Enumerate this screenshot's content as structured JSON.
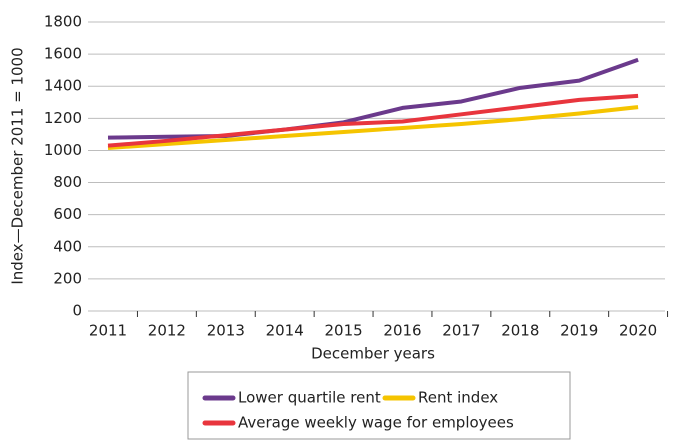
{
  "chart_data": {
    "type": "line",
    "x_label": "December years",
    "y_label": "Index—December 2011 = 1000",
    "categories": [
      "2011",
      "2012",
      "2013",
      "2014",
      "2015",
      "2016",
      "2017",
      "2018",
      "2019",
      "2020"
    ],
    "series": [
      {
        "name": "Lower quartile rent",
        "color": "#6b3a8c",
        "values": [
          1080,
          1085,
          1090,
          1130,
          1175,
          1265,
          1305,
          1390,
          1435,
          1565
        ]
      },
      {
        "name": "Rent index",
        "color": "#f5c400",
        "values": [
          1015,
          1040,
          1065,
          1090,
          1115,
          1140,
          1165,
          1195,
          1230,
          1270
        ]
      },
      {
        "name": "Average weekly wage for employees",
        "color": "#e8353d",
        "values": [
          1030,
          1060,
          1095,
          1130,
          1165,
          1180,
          1225,
          1270,
          1315,
          1340
        ]
      }
    ],
    "ylim": [
      0,
      1800
    ],
    "yticks": [
      0,
      200,
      400,
      600,
      800,
      1000,
      1200,
      1400,
      1600,
      1800
    ],
    "grid": true,
    "legend": "bottom"
  }
}
